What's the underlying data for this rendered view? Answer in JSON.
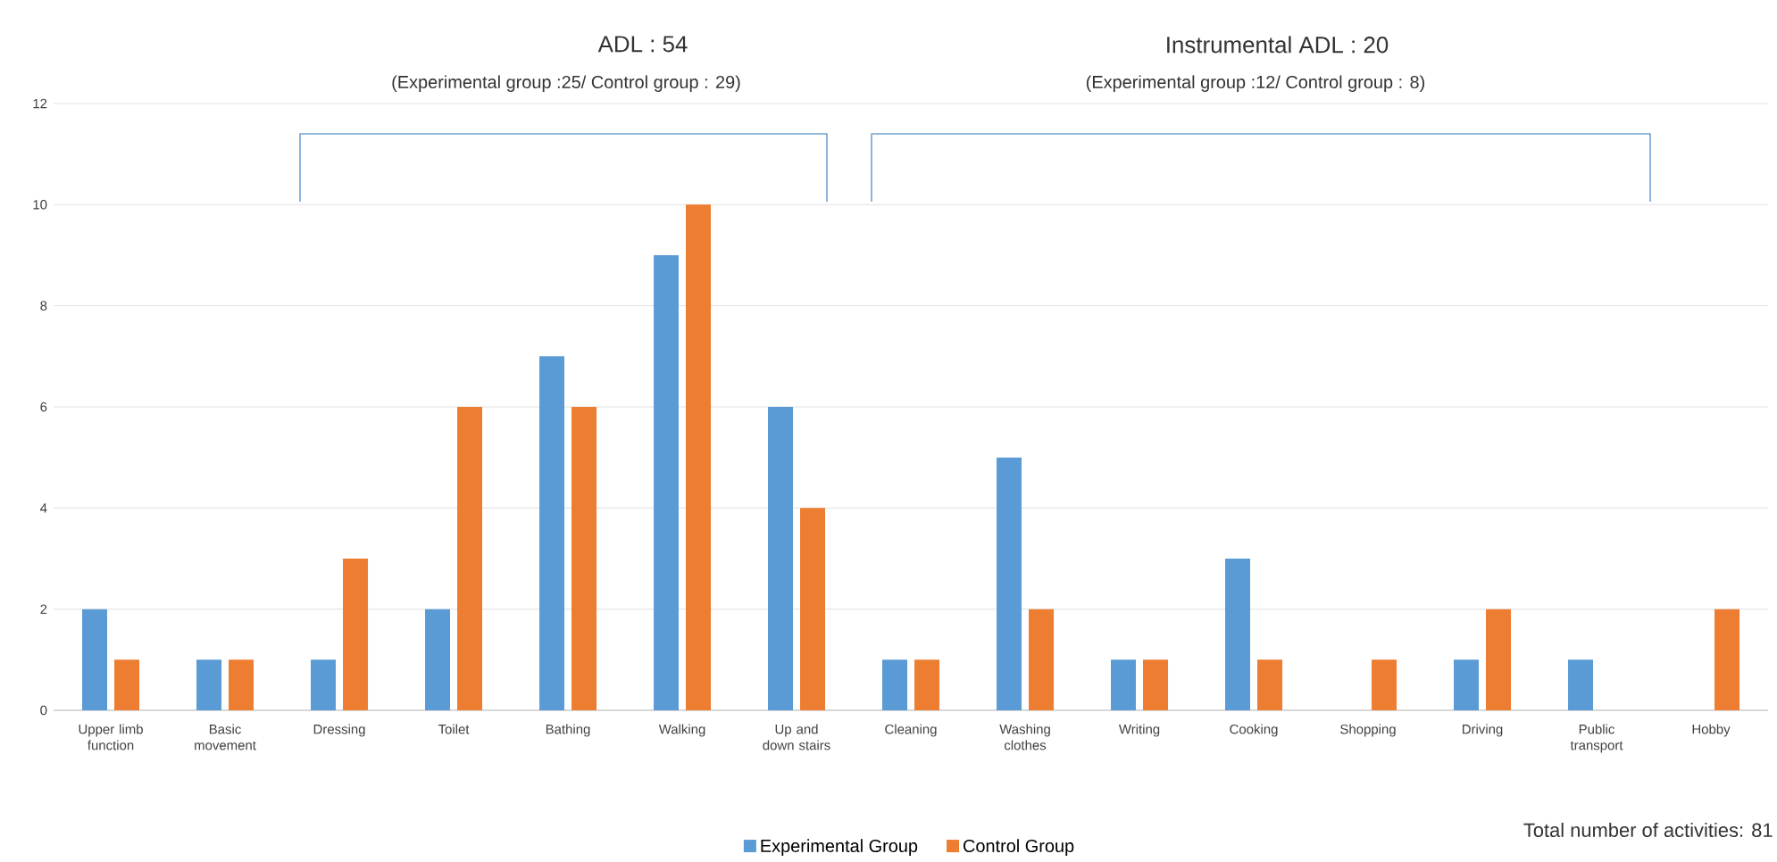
{
  "chart_data": {
    "type": "bar",
    "categories": [
      "Upper limb function",
      "Basic movement",
      "Dressing",
      "Toilet",
      "Bathing",
      "Walking",
      "Up and down stairs",
      "Cleaning",
      "Washing clothes",
      "Writing",
      "Cooking",
      "Shopping",
      "Driving",
      "Public transport",
      "Hobby"
    ],
    "series": [
      {
        "name": "Experimental Group",
        "color": "#5b9bd5",
        "values": [
          2,
          1,
          1,
          2,
          7,
          9,
          6,
          1,
          5,
          1,
          3,
          0,
          1,
          1,
          0
        ]
      },
      {
        "name": "Control Group",
        "color": "#ed7d31",
        "values": [
          1,
          1,
          3,
          6,
          6,
          10,
          4,
          1,
          2,
          1,
          1,
          1,
          2,
          0,
          2
        ]
      }
    ],
    "ylim": [
      0,
      12
    ],
    "yticks": [
      0,
      2,
      4,
      6,
      8,
      10,
      12
    ],
    "grid": "y",
    "legend": "bottom",
    "annotations": [
      "ADL : 54",
      "(Experimental group :25/ Control group : 29)",
      "Instrumental ADL : 20",
      "(Experimental group :12/ Control group : 8)",
      "Total number of activities: 81"
    ]
  }
}
